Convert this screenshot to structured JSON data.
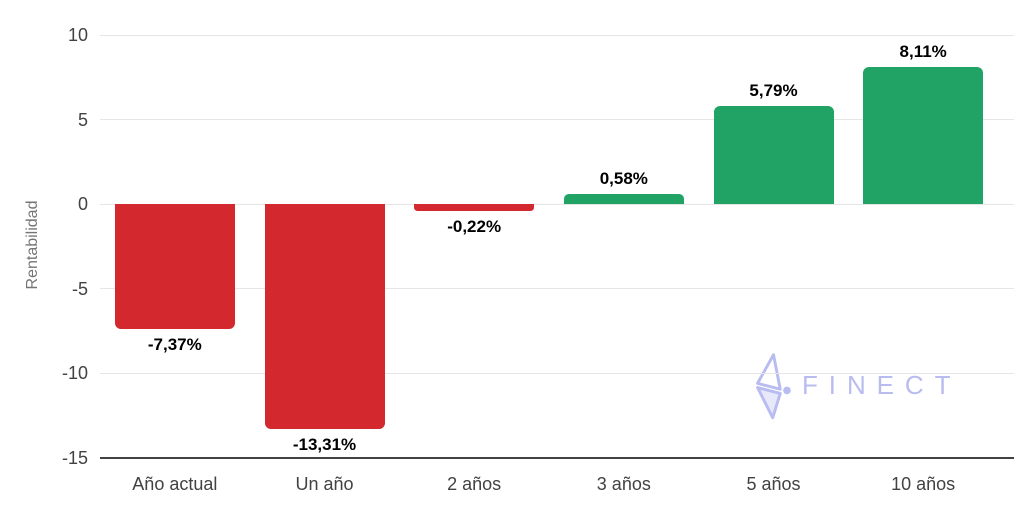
{
  "chart_data": {
    "type": "bar",
    "title": "",
    "xlabel": "",
    "ylabel": "Rentabilidad",
    "categories": [
      "Año actual",
      "Un año",
      "2 años",
      "3 años",
      "5 años",
      "10 años"
    ],
    "values": [
      -7.37,
      -13.31,
      -0.22,
      0.58,
      5.79,
      8.11
    ],
    "value_labels": [
      "-7,37%",
      "-13,31%",
      "-0,22%",
      "0,58%",
      "5,79%",
      "8,11%"
    ],
    "ylim": [
      -15,
      10
    ],
    "yticks": [
      10,
      5,
      0,
      -5,
      -10,
      -15
    ],
    "grid": true,
    "legend_position": "none",
    "colors": {
      "positive": "#21a365",
      "negative": "#d2282e"
    }
  },
  "axis": {
    "grid_color": "#e6e6e6",
    "baseline_color": "#424242",
    "tick_color": "#424242",
    "ylabel_color": "#757575"
  },
  "watermark": {
    "brand": "FINECT",
    "color": "#b9bcf0"
  }
}
